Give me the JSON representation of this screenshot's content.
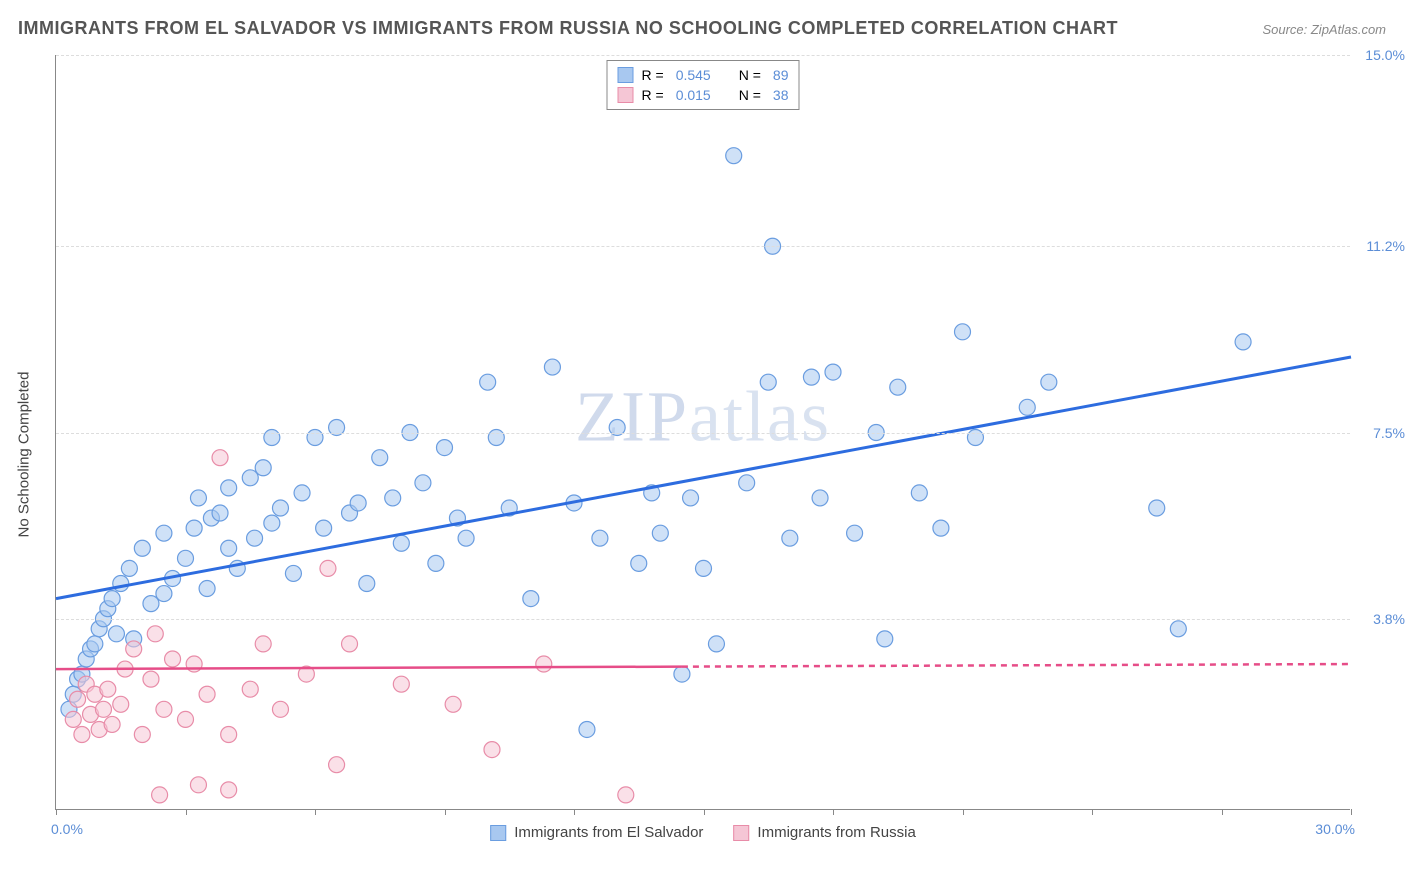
{
  "title": "IMMIGRANTS FROM EL SALVADOR VS IMMIGRANTS FROM RUSSIA NO SCHOOLING COMPLETED CORRELATION CHART",
  "source": "Source: ZipAtlas.com",
  "watermark": "ZIPatlas",
  "y_axis_label": "No Schooling Completed",
  "chart": {
    "type": "scatter",
    "xlim": [
      0,
      30
    ],
    "ylim": [
      0,
      15
    ],
    "x_start_label": "0.0%",
    "x_end_label": "30.0%",
    "y_ticks": [
      {
        "v": 3.8,
        "label": "3.8%"
      },
      {
        "v": 7.5,
        "label": "7.5%"
      },
      {
        "v": 11.2,
        "label": "11.2%"
      },
      {
        "v": 15.0,
        "label": "15.0%"
      }
    ],
    "x_tick_positions": [
      0,
      3,
      6,
      9,
      12,
      15,
      18,
      21,
      24,
      27,
      30
    ],
    "background_color": "#ffffff",
    "grid_color": "#dddddd",
    "marker_radius": 8,
    "marker_opacity": 0.55,
    "series": [
      {
        "name": "Immigrants from El Salvador",
        "fill": "#a8c8f0",
        "stroke": "#6a9de0",
        "trend_color": "#2d6cdf",
        "trend_width": 3,
        "trend": {
          "x1": 0,
          "y1": 4.2,
          "x2": 30,
          "y2": 9.0
        },
        "trend_dash_after_x": null,
        "R": "0.545",
        "N": "89",
        "points": [
          [
            0.3,
            2.0
          ],
          [
            0.4,
            2.3
          ],
          [
            0.5,
            2.6
          ],
          [
            0.6,
            2.7
          ],
          [
            0.7,
            3.0
          ],
          [
            0.8,
            3.2
          ],
          [
            0.9,
            3.3
          ],
          [
            1.0,
            3.6
          ],
          [
            1.1,
            3.8
          ],
          [
            1.2,
            4.0
          ],
          [
            1.3,
            4.2
          ],
          [
            1.4,
            3.5
          ],
          [
            1.5,
            4.5
          ],
          [
            1.7,
            4.8
          ],
          [
            1.8,
            3.4
          ],
          [
            2.0,
            5.2
          ],
          [
            2.2,
            4.1
          ],
          [
            2.5,
            5.5
          ],
          [
            2.5,
            4.3
          ],
          [
            2.7,
            4.6
          ],
          [
            3.0,
            5.0
          ],
          [
            3.2,
            5.6
          ],
          [
            3.3,
            6.2
          ],
          [
            3.5,
            4.4
          ],
          [
            3.6,
            5.8
          ],
          [
            3.8,
            5.9
          ],
          [
            4.0,
            5.2
          ],
          [
            4.0,
            6.4
          ],
          [
            4.2,
            4.8
          ],
          [
            4.5,
            6.6
          ],
          [
            4.6,
            5.4
          ],
          [
            4.8,
            6.8
          ],
          [
            5.0,
            5.7
          ],
          [
            5.0,
            7.4
          ],
          [
            5.2,
            6.0
          ],
          [
            5.5,
            4.7
          ],
          [
            5.7,
            6.3
          ],
          [
            6.0,
            7.4
          ],
          [
            6.2,
            5.6
          ],
          [
            6.5,
            7.6
          ],
          [
            6.8,
            5.9
          ],
          [
            7.0,
            6.1
          ],
          [
            7.2,
            4.5
          ],
          [
            7.5,
            7.0
          ],
          [
            7.8,
            6.2
          ],
          [
            8.0,
            5.3
          ],
          [
            8.2,
            7.5
          ],
          [
            8.5,
            6.5
          ],
          [
            8.8,
            4.9
          ],
          [
            9.0,
            7.2
          ],
          [
            9.3,
            5.8
          ],
          [
            9.5,
            5.4
          ],
          [
            10.0,
            8.5
          ],
          [
            10.2,
            7.4
          ],
          [
            10.5,
            6.0
          ],
          [
            11.0,
            4.2
          ],
          [
            11.5,
            8.8
          ],
          [
            12.0,
            6.1
          ],
          [
            12.3,
            1.6
          ],
          [
            12.6,
            5.4
          ],
          [
            13.0,
            7.6
          ],
          [
            13.5,
            4.9
          ],
          [
            13.8,
            6.3
          ],
          [
            14.0,
            5.5
          ],
          [
            14.5,
            2.7
          ],
          [
            14.7,
            6.2
          ],
          [
            15.0,
            4.8
          ],
          [
            15.3,
            3.3
          ],
          [
            15.7,
            13.0
          ],
          [
            16.0,
            6.5
          ],
          [
            16.5,
            8.5
          ],
          [
            16.6,
            11.2
          ],
          [
            17.0,
            5.4
          ],
          [
            17.5,
            8.6
          ],
          [
            17.7,
            6.2
          ],
          [
            18.0,
            8.7
          ],
          [
            18.5,
            5.5
          ],
          [
            19.0,
            7.5
          ],
          [
            19.2,
            3.4
          ],
          [
            19.5,
            8.4
          ],
          [
            20.0,
            6.3
          ],
          [
            20.5,
            5.6
          ],
          [
            21.0,
            9.5
          ],
          [
            21.3,
            7.4
          ],
          [
            22.5,
            8.0
          ],
          [
            23.0,
            8.5
          ],
          [
            25.5,
            6.0
          ],
          [
            26.0,
            3.6
          ],
          [
            27.5,
            9.3
          ]
        ]
      },
      {
        "name": "Immigrants from Russia",
        "fill": "#f5c6d5",
        "stroke": "#e88ca8",
        "trend_color": "#e64d88",
        "trend_width": 2.5,
        "trend": {
          "x1": 0,
          "y1": 2.8,
          "x2": 30,
          "y2": 2.9
        },
        "trend_dash_after_x": 14.5,
        "R": "0.015",
        "N": "38",
        "points": [
          [
            0.4,
            1.8
          ],
          [
            0.5,
            2.2
          ],
          [
            0.6,
            1.5
          ],
          [
            0.7,
            2.5
          ],
          [
            0.8,
            1.9
          ],
          [
            0.9,
            2.3
          ],
          [
            1.0,
            1.6
          ],
          [
            1.1,
            2.0
          ],
          [
            1.2,
            2.4
          ],
          [
            1.3,
            1.7
          ],
          [
            1.5,
            2.1
          ],
          [
            1.6,
            2.8
          ],
          [
            1.8,
            3.2
          ],
          [
            2.0,
            1.5
          ],
          [
            2.2,
            2.6
          ],
          [
            2.3,
            3.5
          ],
          [
            2.4,
            0.3
          ],
          [
            2.5,
            2.0
          ],
          [
            2.7,
            3.0
          ],
          [
            3.0,
            1.8
          ],
          [
            3.2,
            2.9
          ],
          [
            3.3,
            0.5
          ],
          [
            3.5,
            2.3
          ],
          [
            3.8,
            7.0
          ],
          [
            4.0,
            1.5
          ],
          [
            4.0,
            0.4
          ],
          [
            4.5,
            2.4
          ],
          [
            4.8,
            3.3
          ],
          [
            5.2,
            2.0
          ],
          [
            5.8,
            2.7
          ],
          [
            6.3,
            4.8
          ],
          [
            6.5,
            0.9
          ],
          [
            6.8,
            3.3
          ],
          [
            8.0,
            2.5
          ],
          [
            9.2,
            2.1
          ],
          [
            10.1,
            1.2
          ],
          [
            11.3,
            2.9
          ],
          [
            13.2,
            0.3
          ]
        ]
      }
    ],
    "legend_top": {
      "R_label": "R =",
      "N_label": "N ="
    },
    "legend_bottom_labels": [
      "Immigrants from El Salvador",
      "Immigrants from Russia"
    ]
  }
}
